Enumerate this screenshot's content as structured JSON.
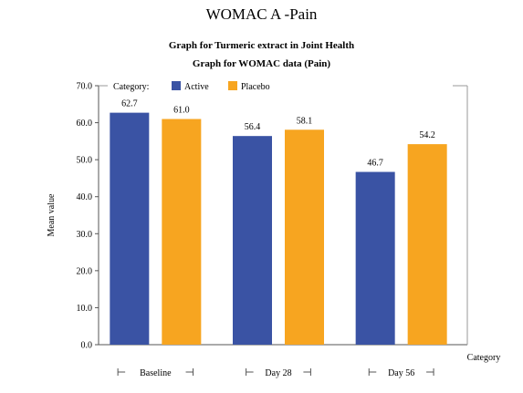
{
  "page_title": "WOMAC A -Pain",
  "chart_data": {
    "type": "bar",
    "title": "Graph for Turmeric extract in Joint Health",
    "subtitle": "Graph for WOMAC data (Pain)",
    "xlabel": "Category",
    "ylabel": "Mean value",
    "legend_title": "Category:",
    "legend_position": "top-left",
    "ylim": [
      0,
      70
    ],
    "yticks": [
      "0.0",
      "10.0",
      "20.0",
      "30.0",
      "40.0",
      "50.0",
      "60.0",
      "70.0"
    ],
    "categories": [
      "Baseline",
      "Day 28",
      "Day 56"
    ],
    "series": [
      {
        "name": "Active",
        "color": "#3a53a4",
        "values": [
          62.7,
          56.4,
          46.7
        ],
        "labels": [
          "62.7",
          "56.4",
          "46.7"
        ]
      },
      {
        "name": "Placebo",
        "color": "#f7a520",
        "values": [
          61.0,
          58.1,
          54.2
        ],
        "labels": [
          "61.0",
          "58.1",
          "54.2"
        ]
      }
    ],
    "grid": false
  }
}
